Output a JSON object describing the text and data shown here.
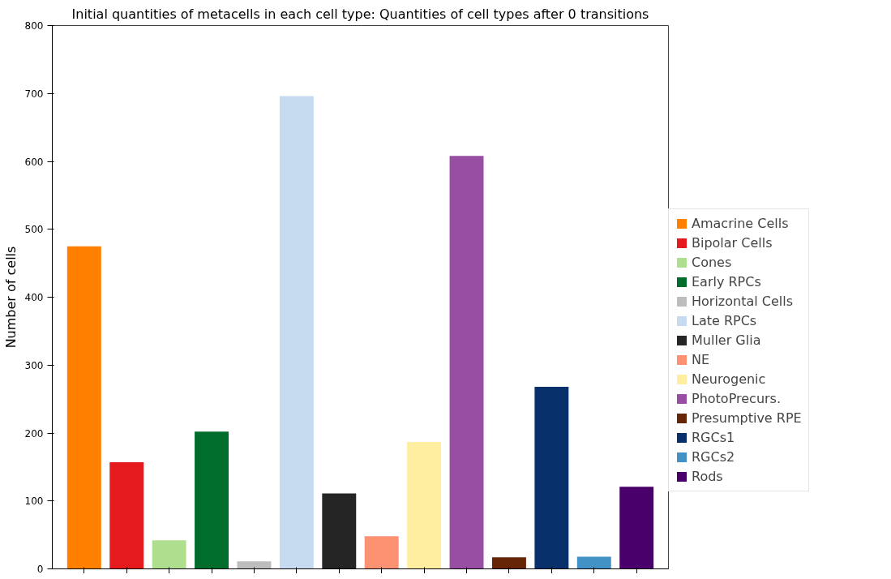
{
  "chart_data": {
    "type": "bar",
    "title": "Initial quantities of metacells in each cell type: Quantities of cell types after 0 transitions",
    "ylabel": "Number of cells",
    "categories": [
      null,
      null,
      null,
      null,
      null,
      null,
      null,
      null,
      null,
      null,
      null,
      null,
      null,
      null
    ],
    "series": [
      {
        "name": "Amacrine Cells",
        "color": "#ff7f00",
        "values": [
          475,
          null,
          null,
          null,
          null,
          null,
          null,
          null,
          null,
          null,
          null,
          null,
          null,
          null
        ]
      },
      {
        "name": "Bipolar Cells",
        "color": "#e41a1c",
        "values": [
          null,
          157,
          null,
          null,
          null,
          null,
          null,
          null,
          null,
          null,
          null,
          null,
          null,
          null
        ]
      },
      {
        "name": "Cones",
        "color": "#addf8f",
        "values": [
          null,
          null,
          42,
          null,
          null,
          null,
          null,
          null,
          null,
          null,
          null,
          null,
          null,
          null
        ]
      },
      {
        "name": "Early RPCs",
        "color": "#006d2c",
        "values": [
          null,
          null,
          null,
          202,
          null,
          null,
          null,
          null,
          null,
          null,
          null,
          null,
          null,
          null
        ]
      },
      {
        "name": "Horizontal Cells",
        "color": "#bdbdbd",
        "values": [
          null,
          null,
          null,
          null,
          11,
          null,
          null,
          null,
          null,
          null,
          null,
          null,
          null,
          null
        ]
      },
      {
        "name": "Late RPCs",
        "color": "#c6dbef",
        "values": [
          null,
          null,
          null,
          null,
          null,
          696,
          null,
          null,
          null,
          null,
          null,
          null,
          null,
          null
        ]
      },
      {
        "name": "Muller Glia",
        "color": "#252525",
        "values": [
          null,
          null,
          null,
          null,
          null,
          null,
          111,
          null,
          null,
          null,
          null,
          null,
          null,
          null
        ]
      },
      {
        "name": "NE",
        "color": "#fc9272",
        "values": [
          null,
          null,
          null,
          null,
          null,
          null,
          null,
          48,
          null,
          null,
          null,
          null,
          null,
          null
        ]
      },
      {
        "name": "Neurogenic",
        "color": "#ffeda0",
        "values": [
          null,
          null,
          null,
          null,
          null,
          null,
          null,
          null,
          187,
          null,
          null,
          null,
          null,
          null
        ]
      },
      {
        "name": "PhotoPrecurs.",
        "color": "#984ea3",
        "values": [
          null,
          null,
          null,
          null,
          null,
          null,
          null,
          null,
          null,
          608,
          null,
          null,
          null,
          null
        ]
      },
      {
        "name": "Presumptive RPE",
        "color": "#662506",
        "values": [
          null,
          null,
          null,
          null,
          null,
          null,
          null,
          null,
          null,
          null,
          17,
          null,
          null,
          null
        ]
      },
      {
        "name": "RGCs1",
        "color": "#08306b",
        "values": [
          null,
          null,
          null,
          null,
          null,
          null,
          null,
          null,
          null,
          null,
          null,
          268,
          null,
          null
        ]
      },
      {
        "name": "RGCs2",
        "color": "#4292c6",
        "values": [
          null,
          null,
          null,
          null,
          null,
          null,
          null,
          null,
          null,
          null,
          null,
          null,
          18,
          null
        ]
      },
      {
        "name": "Rods",
        "color": "#49006a",
        "values": [
          null,
          null,
          null,
          null,
          null,
          null,
          null,
          null,
          null,
          null,
          null,
          null,
          null,
          121
        ]
      }
    ],
    "ylim": [
      0,
      800
    ],
    "yticks": [
      0,
      100,
      200,
      300,
      400,
      500,
      600,
      700,
      800
    ],
    "tick_labels": "y",
    "grid": false,
    "legend": "right"
  }
}
